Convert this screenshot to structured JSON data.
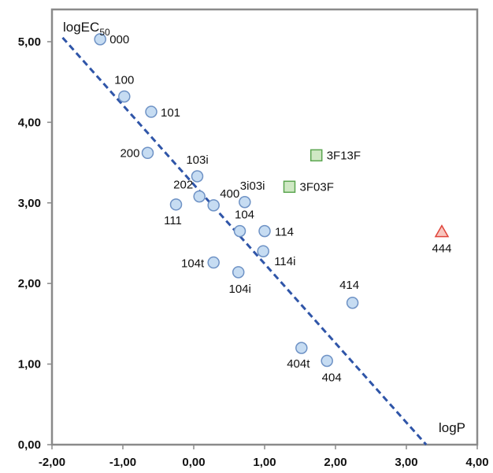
{
  "chart_data": {
    "type": "scatter",
    "title": "",
    "xlabel": "logP",
    "ylabel": {
      "main": "logEC",
      "sub": "50"
    },
    "xlim": [
      -2,
      4
    ],
    "ylim": [
      0,
      5.4
    ],
    "x_ticks": [
      -2,
      -1,
      0,
      1,
      2,
      3,
      4
    ],
    "x_tick_labels": [
      "-2,00",
      "-1,00",
      "0,00",
      "1,00",
      "2,00",
      "3,00",
      "4,00"
    ],
    "y_ticks": [
      0,
      1,
      2,
      3,
      4,
      5
    ],
    "y_tick_labels": [
      "0,00",
      "1,00",
      "2,00",
      "3,00",
      "4,00",
      "5,00"
    ],
    "grid": false,
    "trendline": {
      "x1": -1.85,
      "y1": 5.05,
      "x2": 3.28,
      "y2": 0.0,
      "style": "dashed",
      "color": "#2f55a8"
    },
    "series": [
      {
        "marker": "circle",
        "fill": "#c6dcf2",
        "stroke": "#6e92c5",
        "points": [
          {
            "label": "000",
            "x": -1.32,
            "y": 5.03
          },
          {
            "label": "100",
            "x": -0.98,
            "y": 4.32
          },
          {
            "label": "101",
            "x": -0.6,
            "y": 4.13
          },
          {
            "label": "200",
            "x": -0.65,
            "y": 3.62
          },
          {
            "label": "103i",
            "x": 0.05,
            "y": 3.33
          },
          {
            "label": "202",
            "x": 0.08,
            "y": 3.08
          },
          {
            "label": "400",
            "x": 0.28,
            "y": 2.97
          },
          {
            "label": "111",
            "x": -0.25,
            "y": 2.98
          },
          {
            "label": "3i03i",
            "x": 0.72,
            "y": 3.01
          },
          {
            "label": "104",
            "x": 0.65,
            "y": 2.65
          },
          {
            "label": "114",
            "x": 1.0,
            "y": 2.65
          },
          {
            "label": "114i",
            "x": 0.98,
            "y": 2.4
          },
          {
            "label": "104t",
            "x": 0.28,
            "y": 2.26
          },
          {
            "label": "104i",
            "x": 0.63,
            "y": 2.14
          },
          {
            "label": "414",
            "x": 2.24,
            "y": 1.76
          },
          {
            "label": "404t",
            "x": 1.52,
            "y": 1.2
          },
          {
            "label": "404",
            "x": 1.88,
            "y": 1.04
          }
        ]
      },
      {
        "marker": "square",
        "fill": "#cfe8c4",
        "stroke": "#5aa54f",
        "points": [
          {
            "label": "3F13F",
            "x": 1.73,
            "y": 3.59
          },
          {
            "label": "3F03F",
            "x": 1.35,
            "y": 3.2
          }
        ]
      },
      {
        "marker": "triangle",
        "fill": "#f8c6bf",
        "stroke": "#e0443a",
        "points": [
          {
            "label": "444",
            "x": 3.5,
            "y": 2.64
          }
        ]
      }
    ]
  }
}
